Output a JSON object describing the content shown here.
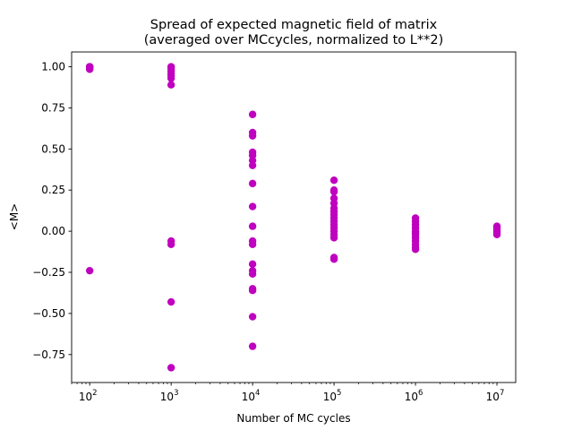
{
  "chart_data": {
    "type": "scatter",
    "title_line1": "Spread of expected magnetic field of matrix",
    "title_line2": "(averaged over MCcycles, normalized to L**2)",
    "xlabel": "Number of MC cycles",
    "ylabel": "<M>",
    "xscale": "log",
    "xlim": [
      60,
      17000000
    ],
    "ylim": [
      -0.92,
      1.09
    ],
    "x_ticks": [
      {
        "base": "10",
        "exp": "2",
        "value": 100
      },
      {
        "base": "10",
        "exp": "3",
        "value": 1000
      },
      {
        "base": "10",
        "exp": "4",
        "value": 10000
      },
      {
        "base": "10",
        "exp": "5",
        "value": 100000
      },
      {
        "base": "10",
        "exp": "6",
        "value": 1000000
      },
      {
        "base": "10",
        "exp": "7",
        "value": 10000000
      }
    ],
    "y_ticks": [
      {
        "label": "1.00",
        "value": 1.0
      },
      {
        "label": "0.75",
        "value": 0.75
      },
      {
        "label": "0.50",
        "value": 0.5
      },
      {
        "label": "0.25",
        "value": 0.25
      },
      {
        "label": "0.00",
        "value": 0.0
      },
      {
        "label": "−0.25",
        "value": -0.25
      },
      {
        "label": "−0.50",
        "value": -0.5
      },
      {
        "label": "−0.75",
        "value": -0.75
      }
    ],
    "grid": false,
    "marker_color": "#bf00bf",
    "points": [
      {
        "x": 100,
        "y": 1.0
      },
      {
        "x": 100,
        "y": 1.0
      },
      {
        "x": 100,
        "y": 0.998
      },
      {
        "x": 100,
        "y": 0.995
      },
      {
        "x": 100,
        "y": 0.99
      },
      {
        "x": 100,
        "y": 0.985
      },
      {
        "x": 100,
        "y": 1.0
      },
      {
        "x": 100,
        "y": -0.24
      },
      {
        "x": 1000,
        "y": 1.0
      },
      {
        "x": 1000,
        "y": 0.99
      },
      {
        "x": 1000,
        "y": 0.975
      },
      {
        "x": 1000,
        "y": 0.96
      },
      {
        "x": 1000,
        "y": 0.945
      },
      {
        "x": 1000,
        "y": 0.93
      },
      {
        "x": 1000,
        "y": 0.89
      },
      {
        "x": 1000,
        "y": -0.06
      },
      {
        "x": 1000,
        "y": -0.08
      },
      {
        "x": 1000,
        "y": -0.43
      },
      {
        "x": 1000,
        "y": -0.83
      },
      {
        "x": 10000,
        "y": 0.71
      },
      {
        "x": 10000,
        "y": 0.6
      },
      {
        "x": 10000,
        "y": 0.58
      },
      {
        "x": 10000,
        "y": 0.48
      },
      {
        "x": 10000,
        "y": 0.46
      },
      {
        "x": 10000,
        "y": 0.43
      },
      {
        "x": 10000,
        "y": 0.4
      },
      {
        "x": 10000,
        "y": 0.29
      },
      {
        "x": 10000,
        "y": 0.15
      },
      {
        "x": 10000,
        "y": 0.03
      },
      {
        "x": 10000,
        "y": -0.06
      },
      {
        "x": 10000,
        "y": -0.08
      },
      {
        "x": 10000,
        "y": -0.2
      },
      {
        "x": 10000,
        "y": -0.24
      },
      {
        "x": 10000,
        "y": -0.26
      },
      {
        "x": 10000,
        "y": -0.35
      },
      {
        "x": 10000,
        "y": -0.36
      },
      {
        "x": 10000,
        "y": -0.52
      },
      {
        "x": 10000,
        "y": -0.7
      },
      {
        "x": 100000,
        "y": 0.31
      },
      {
        "x": 100000,
        "y": 0.25
      },
      {
        "x": 100000,
        "y": 0.24
      },
      {
        "x": 100000,
        "y": 0.2
      },
      {
        "x": 100000,
        "y": 0.17
      },
      {
        "x": 100000,
        "y": 0.14
      },
      {
        "x": 100000,
        "y": 0.12
      },
      {
        "x": 100000,
        "y": 0.1
      },
      {
        "x": 100000,
        "y": 0.08
      },
      {
        "x": 100000,
        "y": 0.06
      },
      {
        "x": 100000,
        "y": 0.04
      },
      {
        "x": 100000,
        "y": 0.02
      },
      {
        "x": 100000,
        "y": 0.0
      },
      {
        "x": 100000,
        "y": -0.02
      },
      {
        "x": 100000,
        "y": -0.04
      },
      {
        "x": 100000,
        "y": -0.16
      },
      {
        "x": 100000,
        "y": -0.17
      },
      {
        "x": 1000000,
        "y": 0.08
      },
      {
        "x": 1000000,
        "y": 0.06
      },
      {
        "x": 1000000,
        "y": 0.04
      },
      {
        "x": 1000000,
        "y": 0.02
      },
      {
        "x": 1000000,
        "y": 0.0
      },
      {
        "x": 1000000,
        "y": -0.01
      },
      {
        "x": 1000000,
        "y": -0.02
      },
      {
        "x": 1000000,
        "y": -0.04
      },
      {
        "x": 1000000,
        "y": -0.06
      },
      {
        "x": 1000000,
        "y": -0.08
      },
      {
        "x": 1000000,
        "y": -0.1
      },
      {
        "x": 1000000,
        "y": -0.11
      },
      {
        "x": 10000000,
        "y": 0.03
      },
      {
        "x": 10000000,
        "y": 0.02
      },
      {
        "x": 10000000,
        "y": 0.01
      },
      {
        "x": 10000000,
        "y": 0.0
      },
      {
        "x": 10000000,
        "y": -0.01
      },
      {
        "x": 10000000,
        "y": -0.02
      }
    ]
  }
}
